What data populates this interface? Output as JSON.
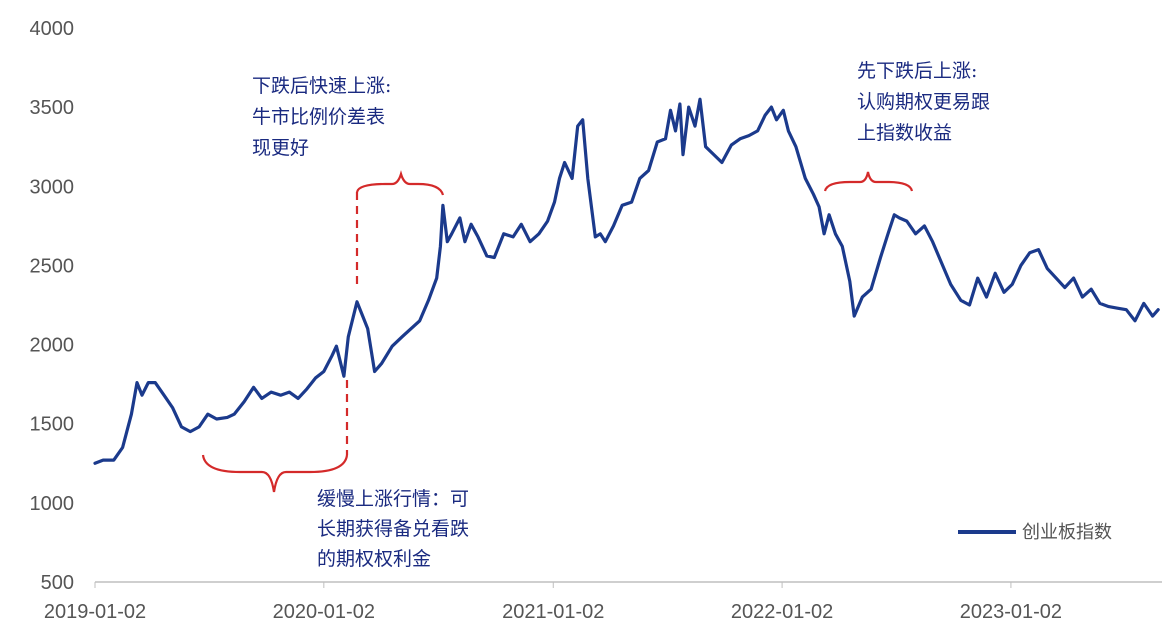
{
  "chart_data": {
    "type": "line",
    "title": "",
    "xlabel": "",
    "ylabel": "",
    "ylim": [
      500,
      4000
    ],
    "y_ticks": [
      4000,
      3500,
      3000,
      2500,
      2000,
      1500,
      1000,
      500
    ],
    "x_tick_labels": [
      "2019-01-02",
      "2020-01-02",
      "2021-01-02",
      "2022-01-02",
      "2023-01-02"
    ],
    "grid": false,
    "legend_position": "bottom-right",
    "colors": {
      "series": "#1b3a8c",
      "annotation": "#d42a2a",
      "annotation_text": "#1a2a80"
    },
    "series": [
      {
        "name": "创业板指数",
        "points": [
          [
            "2019-01-02",
            1250
          ],
          [
            "2019-01-15",
            1270
          ],
          [
            "2019-02-01",
            1270
          ],
          [
            "2019-02-15",
            1350
          ],
          [
            "2019-03-01",
            1560
          ],
          [
            "2019-03-10",
            1760
          ],
          [
            "2019-03-18",
            1680
          ],
          [
            "2019-03-28",
            1760
          ],
          [
            "2019-04-08",
            1760
          ],
          [
            "2019-04-22",
            1680
          ],
          [
            "2019-05-06",
            1600
          ],
          [
            "2019-05-20",
            1480
          ],
          [
            "2019-06-03",
            1450
          ],
          [
            "2019-06-17",
            1480
          ],
          [
            "2019-07-01",
            1560
          ],
          [
            "2019-07-15",
            1530
          ],
          [
            "2019-08-01",
            1540
          ],
          [
            "2019-08-12",
            1560
          ],
          [
            "2019-08-28",
            1640
          ],
          [
            "2019-09-12",
            1730
          ],
          [
            "2019-09-25",
            1660
          ],
          [
            "2019-10-10",
            1700
          ],
          [
            "2019-10-25",
            1680
          ],
          [
            "2019-11-08",
            1700
          ],
          [
            "2019-11-22",
            1660
          ],
          [
            "2019-12-06",
            1720
          ],
          [
            "2019-12-20",
            1790
          ],
          [
            "2020-01-02",
            1830
          ],
          [
            "2020-01-15",
            1930
          ],
          [
            "2020-01-22",
            1990
          ],
          [
            "2020-02-03",
            1800
          ],
          [
            "2020-02-10",
            2050
          ],
          [
            "2020-02-24",
            2270
          ],
          [
            "2020-03-04",
            2180
          ],
          [
            "2020-03-12",
            2100
          ],
          [
            "2020-03-23",
            1830
          ],
          [
            "2020-04-03",
            1880
          ],
          [
            "2020-04-20",
            1990
          ],
          [
            "2020-05-06",
            2050
          ],
          [
            "2020-05-20",
            2100
          ],
          [
            "2020-06-03",
            2150
          ],
          [
            "2020-06-17",
            2280
          ],
          [
            "2020-06-30",
            2420
          ],
          [
            "2020-07-06",
            2620
          ],
          [
            "2020-07-10",
            2880
          ],
          [
            "2020-07-17",
            2650
          ],
          [
            "2020-07-24",
            2700
          ],
          [
            "2020-08-06",
            2800
          ],
          [
            "2020-08-14",
            2650
          ],
          [
            "2020-08-24",
            2760
          ],
          [
            "2020-09-04",
            2680
          ],
          [
            "2020-09-18",
            2560
          ],
          [
            "2020-09-30",
            2550
          ],
          [
            "2020-10-15",
            2700
          ],
          [
            "2020-10-30",
            2680
          ],
          [
            "2020-11-12",
            2760
          ],
          [
            "2020-11-26",
            2650
          ],
          [
            "2020-12-10",
            2700
          ],
          [
            "2020-12-24",
            2780
          ],
          [
            "2021-01-04",
            2900
          ],
          [
            "2021-01-12",
            3050
          ],
          [
            "2021-01-20",
            3150
          ],
          [
            "2021-02-01",
            3050
          ],
          [
            "2021-02-10",
            3380
          ],
          [
            "2021-02-18",
            3420
          ],
          [
            "2021-02-26",
            3050
          ],
          [
            "2021-03-10",
            2680
          ],
          [
            "2021-03-18",
            2700
          ],
          [
            "2021-03-26",
            2650
          ],
          [
            "2021-04-08",
            2750
          ],
          [
            "2021-04-22",
            2880
          ],
          [
            "2021-05-07",
            2900
          ],
          [
            "2021-05-20",
            3050
          ],
          [
            "2021-06-03",
            3100
          ],
          [
            "2021-06-17",
            3280
          ],
          [
            "2021-06-30",
            3300
          ],
          [
            "2021-07-08",
            3480
          ],
          [
            "2021-07-16",
            3350
          ],
          [
            "2021-07-23",
            3520
          ],
          [
            "2021-07-28",
            3200
          ],
          [
            "2021-08-06",
            3500
          ],
          [
            "2021-08-16",
            3380
          ],
          [
            "2021-08-24",
            3550
          ],
          [
            "2021-09-02",
            3250
          ],
          [
            "2021-09-15",
            3200
          ],
          [
            "2021-09-28",
            3150
          ],
          [
            "2021-10-13",
            3260
          ],
          [
            "2021-10-27",
            3300
          ],
          [
            "2021-11-10",
            3320
          ],
          [
            "2021-11-24",
            3350
          ],
          [
            "2021-12-06",
            3450
          ],
          [
            "2021-12-16",
            3500
          ],
          [
            "2021-12-24",
            3420
          ],
          [
            "2022-01-04",
            3480
          ],
          [
            "2022-01-12",
            3350
          ],
          [
            "2022-01-24",
            3250
          ],
          [
            "2022-02-08",
            3050
          ],
          [
            "2022-02-21",
            2950
          ],
          [
            "2022-03-02",
            2870
          ],
          [
            "2022-03-10",
            2700
          ],
          [
            "2022-03-18",
            2820
          ],
          [
            "2022-03-28",
            2700
          ],
          [
            "2022-04-08",
            2620
          ],
          [
            "2022-04-20",
            2400
          ],
          [
            "2022-04-27",
            2180
          ],
          [
            "2022-05-10",
            2300
          ],
          [
            "2022-05-24",
            2350
          ],
          [
            "2022-06-08",
            2550
          ],
          [
            "2022-06-20",
            2700
          ],
          [
            "2022-06-30",
            2820
          ],
          [
            "2022-07-08",
            2800
          ],
          [
            "2022-07-20",
            2780
          ],
          [
            "2022-08-03",
            2700
          ],
          [
            "2022-08-17",
            2750
          ],
          [
            "2022-08-30",
            2650
          ],
          [
            "2022-09-15",
            2500
          ],
          [
            "2022-09-28",
            2380
          ],
          [
            "2022-10-14",
            2280
          ],
          [
            "2022-10-28",
            2250
          ],
          [
            "2022-11-10",
            2420
          ],
          [
            "2022-11-24",
            2300
          ],
          [
            "2022-12-08",
            2450
          ],
          [
            "2022-12-22",
            2330
          ],
          [
            "2023-01-04",
            2380
          ],
          [
            "2023-01-18",
            2500
          ],
          [
            "2023-02-01",
            2580
          ],
          [
            "2023-02-15",
            2600
          ],
          [
            "2023-03-01",
            2480
          ],
          [
            "2023-03-15",
            2420
          ],
          [
            "2023-03-29",
            2360
          ],
          [
            "2023-04-12",
            2420
          ],
          [
            "2023-04-26",
            2300
          ],
          [
            "2023-05-10",
            2350
          ],
          [
            "2023-05-24",
            2260
          ],
          [
            "2023-06-07",
            2240
          ],
          [
            "2023-06-21",
            2230
          ],
          [
            "2023-07-05",
            2220
          ],
          [
            "2023-07-19",
            2150
          ],
          [
            "2023-08-02",
            2260
          ],
          [
            "2023-08-16",
            2180
          ],
          [
            "2023-08-25",
            2220
          ]
        ]
      }
    ],
    "annotations": [
      {
        "id": "slow-rise",
        "lines": [
          "缓慢上涨行情：可",
          "长期获得备兑看跌",
          "的期权权利金"
        ]
      },
      {
        "id": "fast-rise",
        "lines": [
          "下跌后快速上涨:",
          "牛市比例价差表",
          "现更好"
        ]
      },
      {
        "id": "fall-then-rise",
        "lines": [
          "先下跌后上涨:",
          "认购期权更易跟",
          "上指数收益"
        ]
      }
    ]
  }
}
